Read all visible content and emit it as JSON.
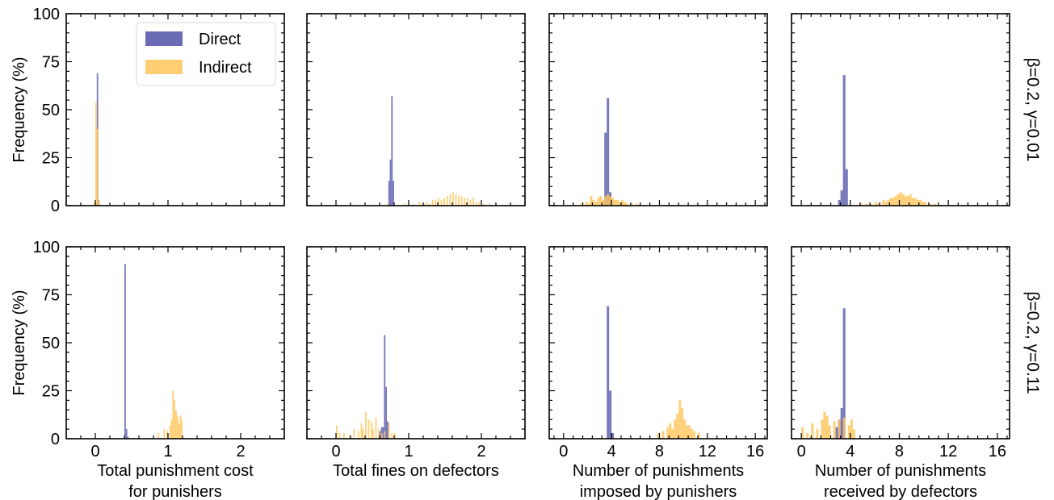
{
  "colors": {
    "direct": "#6b6cb5",
    "indirect": "#ffc65c",
    "overlap": "#d88a3a"
  },
  "legend": {
    "direct": "Direct",
    "indirect": "Indirect"
  },
  "row_labels": [
    "β=0.2, γ=0.01",
    "β=0.2, γ=0.11"
  ],
  "y_axis": {
    "label": "Frequency (%)",
    "ticks": [
      "0",
      "25",
      "50",
      "75",
      "100"
    ],
    "ylim": [
      0,
      100
    ]
  },
  "columns": [
    {
      "xlabel": [
        "Total punishment cost",
        "for punishers"
      ],
      "xlim": [
        -0.4,
        2.6
      ],
      "xticks": [
        0,
        1,
        2
      ],
      "xtick_labels": [
        "0",
        "1",
        "2"
      ]
    },
    {
      "xlabel": [
        "Total fines on defectors"
      ],
      "xlim": [
        -0.4,
        2.6
      ],
      "xticks": [
        0,
        1,
        2
      ],
      "xtick_labels": [
        "0",
        "1",
        "2"
      ]
    },
    {
      "xlabel": [
        "Number of punishments",
        "imposed by punishers"
      ],
      "xlim": [
        -1.2,
        17
      ],
      "xticks": [
        0,
        4,
        8,
        12,
        16
      ],
      "xtick_labels": [
        "0",
        "4",
        "8",
        "12",
        "16"
      ]
    },
    {
      "xlabel": [
        "Number of punishments",
        "received by defectors"
      ],
      "xlim": [
        -0.8,
        17
      ],
      "xticks": [
        0,
        4,
        8,
        12,
        16
      ],
      "xtick_labels": [
        "0",
        "4",
        "8",
        "12",
        "16"
      ]
    }
  ],
  "chart_data": [
    {
      "type": "bar",
      "row": 0,
      "col": 0,
      "xlabel": "",
      "ylabel": "Frequency (%)",
      "ylim": [
        0,
        100
      ],
      "series": [
        {
          "name": "Direct",
          "bin_width": 0.02,
          "x": [
            0.0,
            0.02,
            0.04
          ],
          "values": [
            0.8,
            69,
            3
          ]
        },
        {
          "name": "Indirect",
          "bin_width": 0.02,
          "x": [
            -0.02,
            0.0,
            0.02,
            0.04
          ],
          "values": [
            2,
            54,
            40,
            3
          ]
        }
      ]
    },
    {
      "type": "bar",
      "row": 0,
      "col": 1,
      "xlabel": "",
      "ylabel": "",
      "ylim": [
        0,
        100
      ],
      "series": [
        {
          "name": "Direct",
          "bin_width": 0.02,
          "x": [
            0.72,
            0.74,
            0.76,
            0.78
          ],
          "values": [
            13,
            24,
            57,
            13
          ]
        },
        {
          "name": "Indirect",
          "bin_width": 0.02,
          "x": [
            0.0,
            0.7,
            0.94,
            1.06,
            1.14,
            1.2,
            1.24,
            1.28,
            1.32,
            1.36,
            1.4,
            1.44,
            1.48,
            1.52,
            1.56,
            1.6,
            1.64,
            1.68,
            1.72,
            1.76,
            1.8,
            1.84,
            1.88,
            1.92,
            1.96,
            2.02,
            2.1,
            2.2
          ],
          "values": [
            0.5,
            1,
            1,
            1,
            2,
            1,
            2,
            1,
            3,
            3,
            4,
            3,
            4,
            5,
            6,
            7,
            6,
            5,
            5,
            4,
            4,
            3,
            4,
            2,
            2,
            1,
            1,
            0.5
          ]
        }
      ]
    },
    {
      "type": "bar",
      "row": 0,
      "col": 2,
      "xlabel": "",
      "ylabel": "",
      "ylim": [
        0,
        100
      ],
      "series": [
        {
          "name": "Direct",
          "bin_width": 0.2,
          "x": [
            3.4,
            3.6,
            3.8
          ],
          "values": [
            38,
            56,
            7
          ]
        },
        {
          "name": "Indirect",
          "bin_width": 0.2,
          "x": [
            1.4,
            1.8,
            2.0,
            2.2,
            2.4,
            2.6,
            2.8,
            3.0,
            3.2,
            3.4,
            3.6,
            3.8,
            4.0,
            4.2,
            4.4,
            4.6,
            4.8,
            5.0,
            5.2,
            5.6,
            6.0
          ],
          "values": [
            1,
            2,
            1,
            5,
            3,
            2,
            4,
            5,
            3,
            5,
            6,
            5,
            4,
            3,
            3,
            2,
            3,
            2,
            1,
            1,
            1
          ]
        }
      ]
    },
    {
      "type": "bar",
      "row": 0,
      "col": 3,
      "xlabel": "",
      "ylabel": "",
      "ylim": [
        0,
        100
      ],
      "series": [
        {
          "name": "Direct",
          "bin_width": 0.2,
          "x": [
            3.0,
            3.2,
            3.4,
            3.6
          ],
          "values": [
            3,
            8,
            68,
            19
          ]
        },
        {
          "name": "Indirect",
          "bin_width": 0.2,
          "x": [
            4.8,
            5.2,
            5.6,
            6.0,
            6.2,
            6.6,
            6.8,
            7.0,
            7.2,
            7.4,
            7.6,
            7.8,
            8.0,
            8.2,
            8.4,
            8.6,
            8.8,
            9.0,
            9.2,
            9.4,
            9.6,
            9.8,
            10.0,
            10.4,
            10.8
          ],
          "values": [
            1,
            1,
            1,
            2,
            1,
            3,
            2,
            3,
            4,
            4,
            5,
            6,
            7,
            6,
            5,
            5,
            6,
            4,
            4,
            3,
            3,
            2,
            2,
            1,
            1
          ]
        }
      ]
    },
    {
      "type": "bar",
      "row": 1,
      "col": 0,
      "xlabel": "Total punishment cost for punishers",
      "ylabel": "Frequency (%)",
      "ylim": [
        0,
        100
      ],
      "series": [
        {
          "name": "Direct",
          "bin_width": 0.02,
          "x": [
            0.4,
            0.42,
            0.44
          ],
          "values": [
            91,
            5,
            1
          ]
        },
        {
          "name": "Indirect",
          "bin_width": 0.02,
          "x": [
            0.86,
            0.94,
            0.98,
            1.02,
            1.04,
            1.06,
            1.08,
            1.1,
            1.12,
            1.14,
            1.16,
            1.18
          ],
          "values": [
            3,
            5,
            4,
            7,
            10,
            25,
            20,
            15,
            12,
            8,
            12,
            10
          ]
        }
      ]
    },
    {
      "type": "bar",
      "row": 1,
      "col": 1,
      "xlabel": "Total fines on defectors",
      "ylabel": "",
      "ylim": [
        0,
        100
      ],
      "series": [
        {
          "name": "Direct",
          "bin_width": 0.02,
          "x": [
            0.6,
            0.62,
            0.64,
            0.66,
            0.68,
            0.7
          ],
          "values": [
            4,
            6,
            6,
            54,
            27,
            9
          ]
        },
        {
          "name": "Indirect",
          "bin_width": 0.02,
          "x": [
            0.0,
            0.04,
            0.1,
            0.18,
            0.24,
            0.3,
            0.34,
            0.36,
            0.4,
            0.44,
            0.48,
            0.5,
            0.54,
            0.58,
            0.62,
            0.66,
            0.72,
            0.76,
            0.8
          ],
          "values": [
            7,
            3,
            3,
            2,
            5,
            4,
            8,
            5,
            14,
            10,
            9,
            5,
            11,
            5,
            3,
            4,
            8,
            3,
            3
          ]
        }
      ]
    },
    {
      "type": "bar",
      "row": 1,
      "col": 2,
      "xlabel": "Number of punishments imposed by punishers",
      "ylabel": "",
      "ylim": [
        0,
        100
      ],
      "series": [
        {
          "name": "Direct",
          "bin_width": 0.2,
          "x": [
            3.6,
            3.8,
            4.0
          ],
          "values": [
            69,
            25,
            3
          ]
        },
        {
          "name": "Indirect",
          "bin_width": 0.2,
          "x": [
            7.8,
            8.2,
            8.6,
            8.8,
            9.0,
            9.2,
            9.4,
            9.6,
            9.8,
            10.0,
            10.2,
            10.4,
            10.6,
            10.8,
            11.2
          ],
          "values": [
            3,
            4,
            6,
            8,
            5,
            10,
            13,
            20,
            16,
            10,
            7,
            7,
            5,
            4,
            3
          ]
        }
      ]
    },
    {
      "type": "bar",
      "row": 1,
      "col": 3,
      "xlabel": "Number of punishments received by defectors",
      "ylabel": "",
      "ylim": [
        0,
        100
      ],
      "series": [
        {
          "name": "Direct",
          "bin_width": 0.2,
          "x": [
            2.8,
            3.0,
            3.2,
            3.4
          ],
          "values": [
            6,
            10,
            16,
            68
          ]
        },
        {
          "name": "Indirect",
          "bin_width": 0.2,
          "x": [
            0.0,
            0.4,
            0.8,
            1.2,
            1.6,
            1.8,
            2.0,
            2.2,
            2.6,
            3.0,
            3.4,
            3.8,
            4.0,
            4.2
          ],
          "values": [
            6,
            3,
            8,
            5,
            10,
            14,
            12,
            7,
            9,
            10,
            11,
            7,
            10,
            5
          ]
        }
      ]
    }
  ]
}
